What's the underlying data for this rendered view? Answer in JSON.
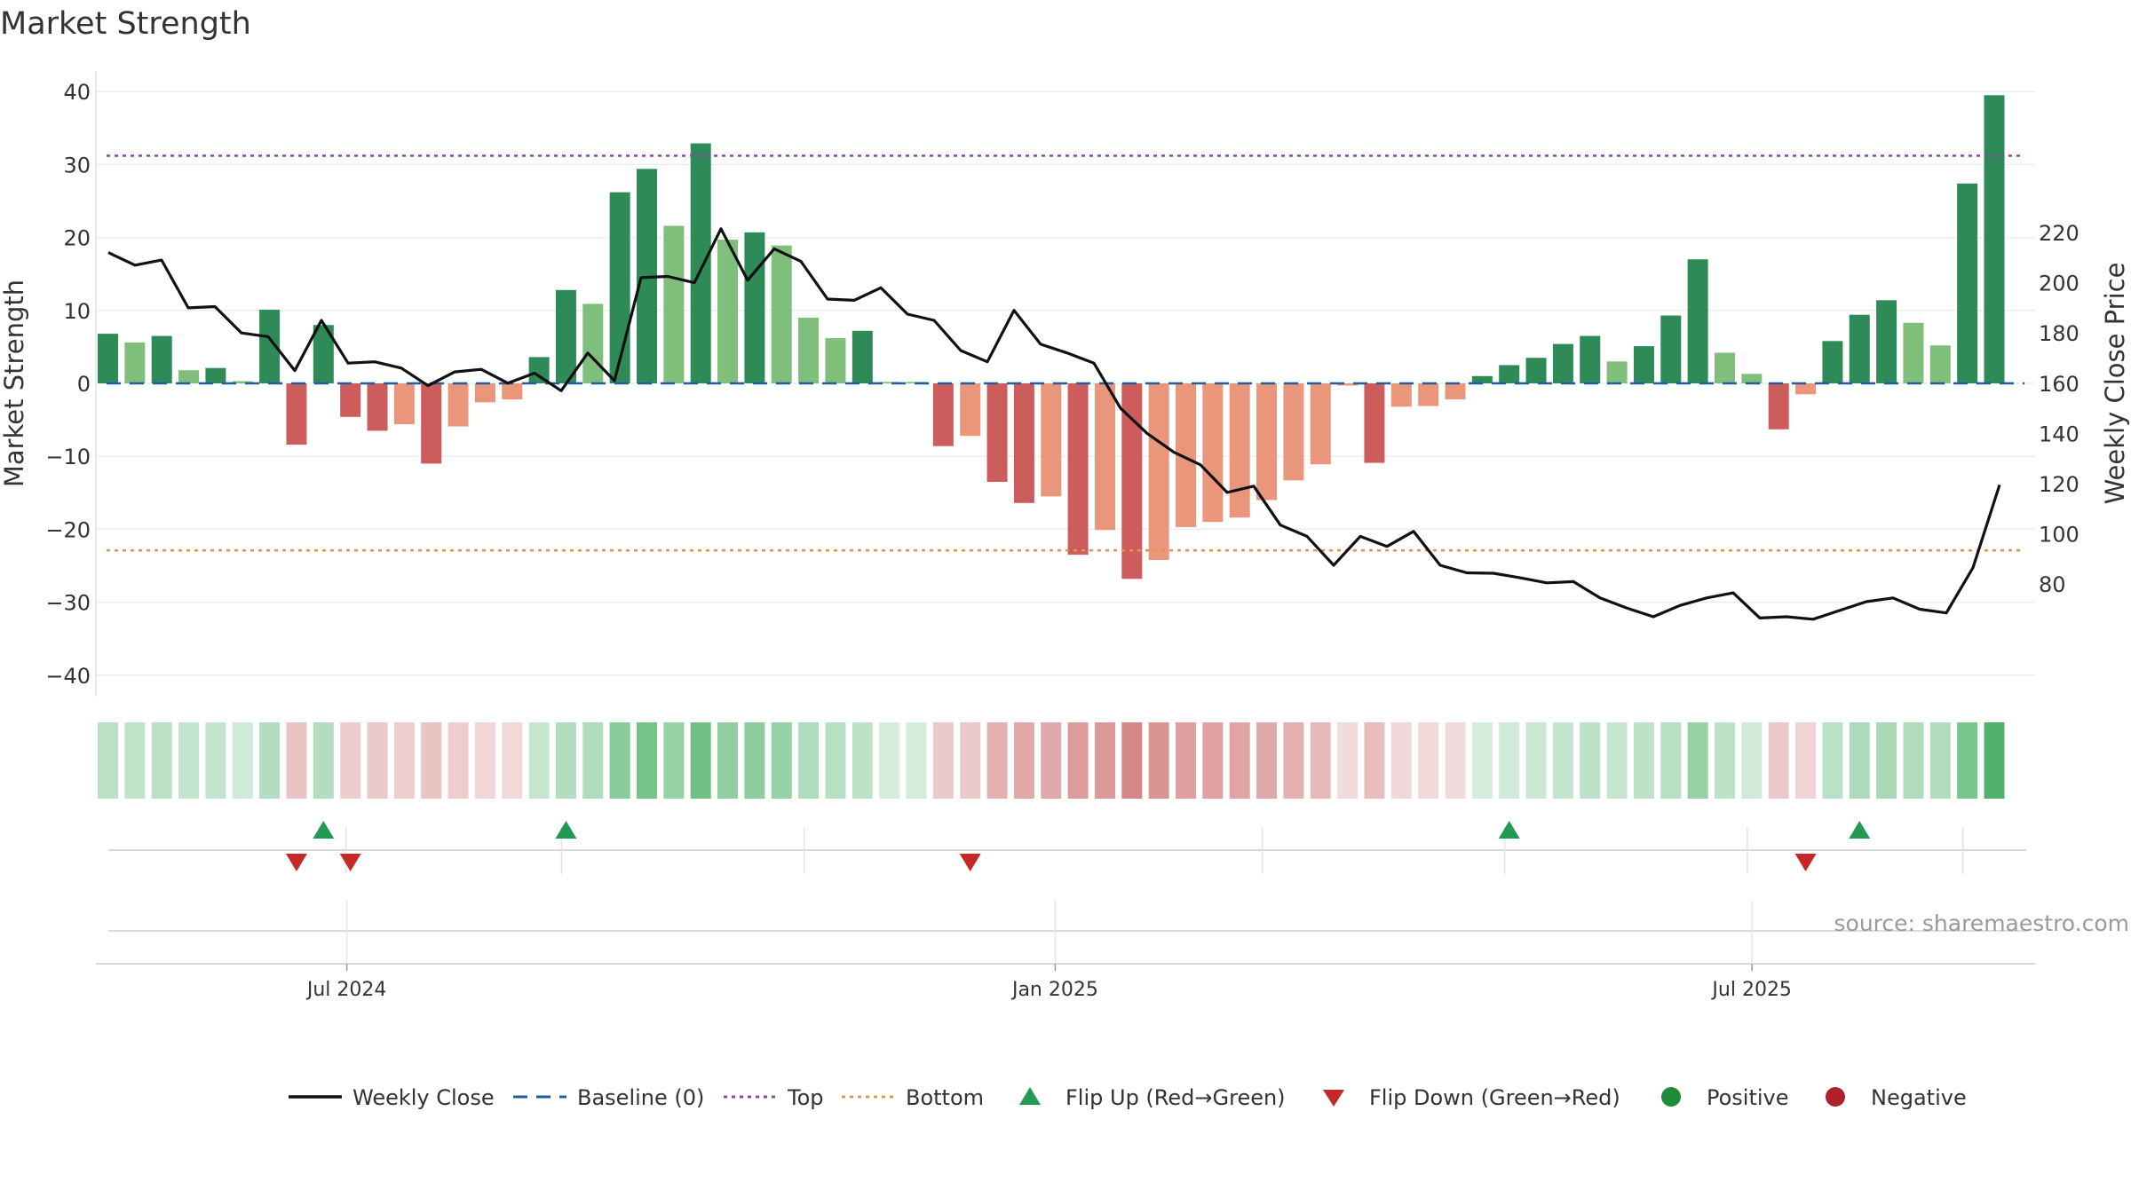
{
  "chart_data": {
    "type": "bar",
    "title": "Market Strength",
    "ylabel": "Market Strength",
    "y2label": "Weekly Close Price",
    "ylim": [
      -45,
      42
    ],
    "y2lim": [
      62,
      227
    ],
    "yticks": [
      40,
      30,
      20,
      10,
      0,
      -10,
      -20,
      -30,
      -40
    ],
    "y2ticks": [
      220,
      200,
      180,
      160,
      140,
      120,
      100,
      80
    ],
    "top_line": 31.2,
    "bottom_line": -22.9,
    "baseline": 0,
    "x_start": "2024-04-29",
    "x_tick_labels": [
      {
        "date": "2024-07-01",
        "label": "Jul 2024"
      },
      {
        "date": "2025-01-01",
        "label": "Jan 2025"
      },
      {
        "date": "2025-07-01",
        "label": "Jul 2025"
      }
    ],
    "source": "source: sharemaestro.com",
    "strength": [
      6.8,
      5.6,
      6.5,
      1.8,
      2.1,
      0.3,
      10.1,
      -8.4,
      8.0,
      -4.6,
      -6.5,
      -5.6,
      -11.0,
      -5.9,
      -2.6,
      -2.2,
      3.6,
      12.8,
      10.9,
      26.2,
      29.4,
      21.6,
      32.9,
      19.7,
      20.7,
      18.9,
      9.0,
      6.2,
      7.2,
      0.2,
      0.2,
      -8.6,
      -7.2,
      -13.5,
      -16.4,
      -15.5,
      -23.5,
      -20.1,
      -26.8,
      -24.2,
      -19.7,
      -19.0,
      -18.4,
      -16.0,
      -13.3,
      -11.1,
      -0.3,
      -10.9,
      -3.2,
      -3.1,
      -2.2,
      1.0,
      2.5,
      3.5,
      5.4,
      6.5,
      3.0,
      5.1,
      9.3,
      17.0,
      4.2,
      1.3,
      -6.3,
      -1.5,
      5.8,
      9.4,
      11.4,
      8.3,
      5.2,
      27.4,
      39.5
    ],
    "shade": [
      "dark",
      "light",
      "dark",
      "light",
      "dark",
      "light",
      "dark",
      "dark",
      "dark",
      "dark",
      "dark",
      "light",
      "dark",
      "light",
      "light",
      "light",
      "dark",
      "dark",
      "light",
      "dark",
      "dark",
      "light",
      "dark",
      "light",
      "dark",
      "light",
      "light",
      "light",
      "dark",
      "light",
      "light",
      "dark",
      "light",
      "dark",
      "dark",
      "light",
      "dark",
      "light",
      "dark",
      "light",
      "light",
      "light",
      "light",
      "light",
      "light",
      "light",
      "light",
      "dark",
      "light",
      "light",
      "light",
      "dark",
      "dark",
      "dark",
      "dark",
      "dark",
      "light",
      "dark",
      "dark",
      "dark",
      "light",
      "light",
      "dark",
      "light",
      "dark",
      "dark",
      "dark",
      "light",
      "light",
      "dark",
      "dark"
    ],
    "weekly_close": [
      212,
      207,
      209,
      190,
      190.5,
      180,
      178.5,
      165,
      185,
      168,
      168.5,
      166,
      159,
      164.5,
      165.5,
      160,
      164,
      157,
      172,
      161,
      202,
      202.5,
      200,
      221.5,
      201,
      213.5,
      208.5,
      193.5,
      193,
      198,
      187.5,
      185,
      173,
      168.5,
      189,
      175.5,
      172,
      168,
      150,
      140,
      132.5,
      127.5,
      116.5,
      119,
      103.5,
      99,
      87.5,
      99,
      95,
      101,
      87.5,
      84.5,
      84.3,
      82.5,
      80.5,
      81,
      74.5,
      70.5,
      67,
      71.5,
      74.5,
      76.5,
      66.5,
      67,
      66,
      69.5,
      73,
      74.5,
      70,
      68.5,
      86.5,
      119.5
    ],
    "heat_alpha": [
      0.36,
      0.33,
      0.36,
      0.31,
      0.31,
      0.25,
      0.4,
      0.36,
      0.4,
      0.31,
      0.33,
      0.3,
      0.36,
      0.3,
      0.25,
      0.23,
      0.3,
      0.4,
      0.42,
      0.62,
      0.72,
      0.55,
      0.75,
      0.58,
      0.6,
      0.55,
      0.42,
      0.38,
      0.35,
      0.22,
      0.22,
      0.32,
      0.33,
      0.48,
      0.53,
      0.52,
      0.6,
      0.62,
      0.72,
      0.65,
      0.58,
      0.57,
      0.55,
      0.52,
      0.48,
      0.42,
      0.22,
      0.4,
      0.24,
      0.23,
      0.22,
      0.22,
      0.25,
      0.28,
      0.31,
      0.34,
      0.3,
      0.34,
      0.38,
      0.55,
      0.35,
      0.25,
      0.33,
      0.26,
      0.36,
      0.43,
      0.45,
      0.42,
      0.4,
      0.7,
      0.92
    ],
    "flip_up_weeks": [
      8,
      17,
      52,
      65
    ],
    "flip_down_weeks": [
      7,
      9,
      32,
      63
    ],
    "vlines_weeks": [
      9,
      17,
      26,
      43,
      52,
      61,
      69
    ],
    "legend": [
      {
        "label": "Weekly Close",
        "type": "line",
        "color": "#111111"
      },
      {
        "label": "Baseline (0)",
        "type": "dash",
        "color": "#1f5fa0"
      },
      {
        "label": "Top",
        "type": "dot",
        "color": "#8e44ad"
      },
      {
        "label": "Bottom",
        "type": "dot",
        "color": "#e8944a"
      },
      {
        "label": "Flip Up (Red→Green)",
        "type": "tri-up",
        "color": "#229954"
      },
      {
        "label": "Flip Down (Green→Red)",
        "type": "tri-down",
        "color": "#c62828"
      },
      {
        "label": "Positive",
        "type": "circle",
        "color": "#1e8c3a"
      },
      {
        "label": "Negative",
        "type": "circle",
        "color": "#b0212b"
      }
    ],
    "colors": {
      "pos_dark": "#2e8b57",
      "pos_light": "#7fbf7b",
      "neg_dark": "#cd5c5c",
      "neg_light": "#e9967a",
      "close_line": "#111111",
      "baseline": "#1f5fa0",
      "top": "#8e44ad",
      "bottom": "#e8944a",
      "heat_pos": "#41ab5d",
      "heat_neg": "#c65a5a"
    }
  }
}
